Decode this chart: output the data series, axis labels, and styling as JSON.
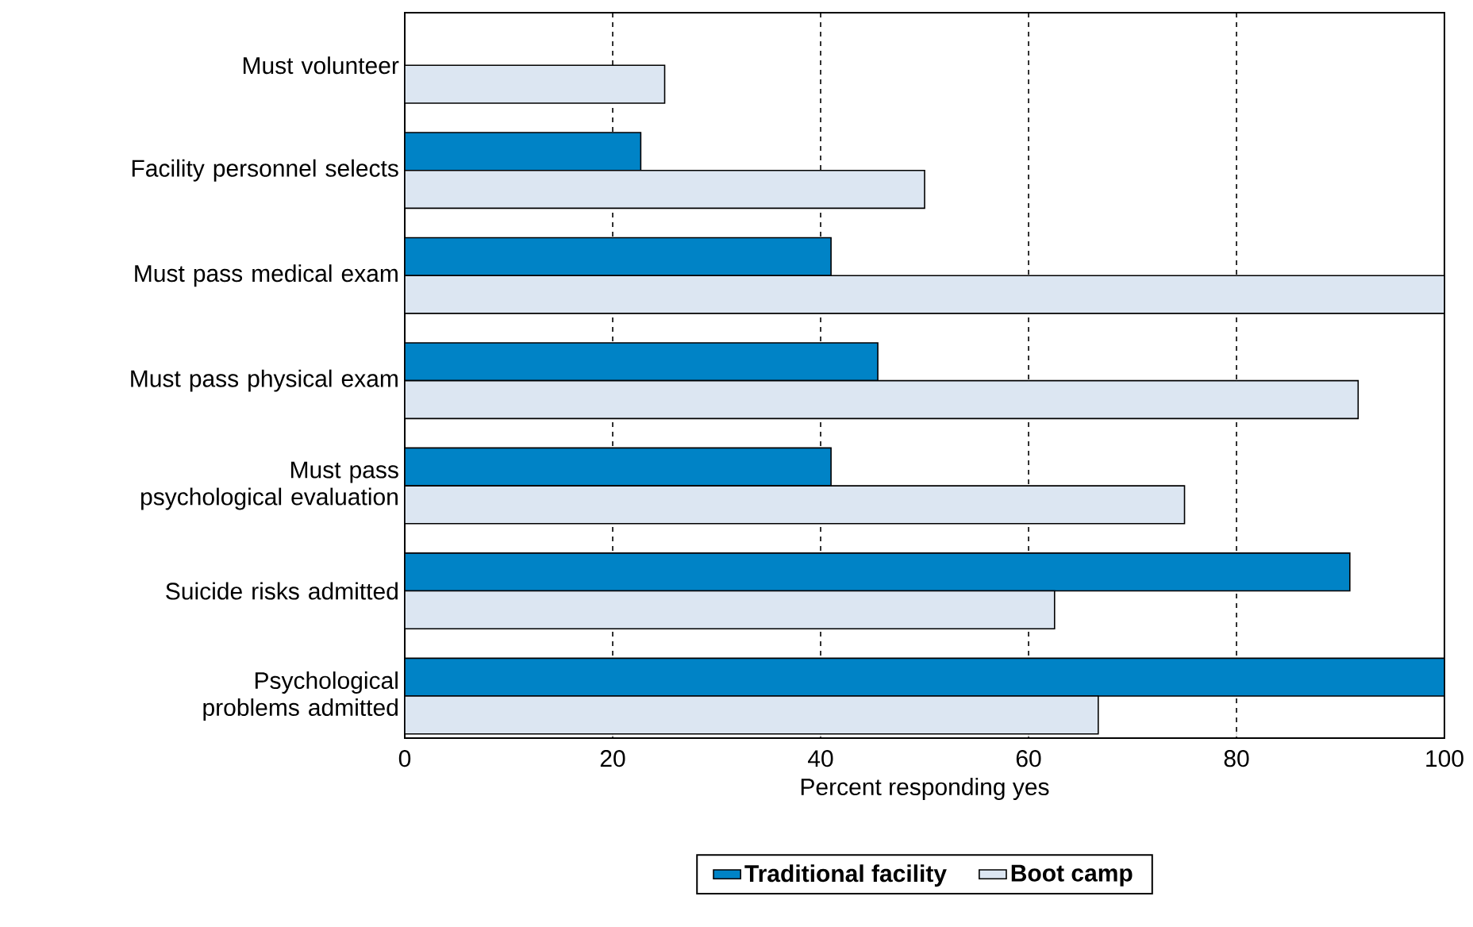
{
  "chart_data": {
    "type": "bar",
    "orientation": "horizontal",
    "xlabel": "Percent responding yes",
    "categories": [
      "Must volunteer",
      "Facility personnel selects",
      "Must pass medical exam",
      "Must pass physical exam",
      "Must pass psychological evaluation",
      "Suicide risks admitted",
      "Psychological problems admitted"
    ],
    "series": [
      {
        "name": "Traditional facility",
        "color": "#0083c6",
        "values": [
          0,
          22.7,
          41,
          45.5,
          41,
          90.9,
          100
        ]
      },
      {
        "name": "Boot camp",
        "color": "#dce6f2",
        "values": [
          25,
          50,
          100,
          91.7,
          75,
          62.5,
          66.7
        ]
      }
    ],
    "xlim": [
      0,
      100
    ],
    "xticks": [
      0,
      20,
      40,
      60,
      80,
      100
    ],
    "grid": "x",
    "legend": "bottom"
  }
}
